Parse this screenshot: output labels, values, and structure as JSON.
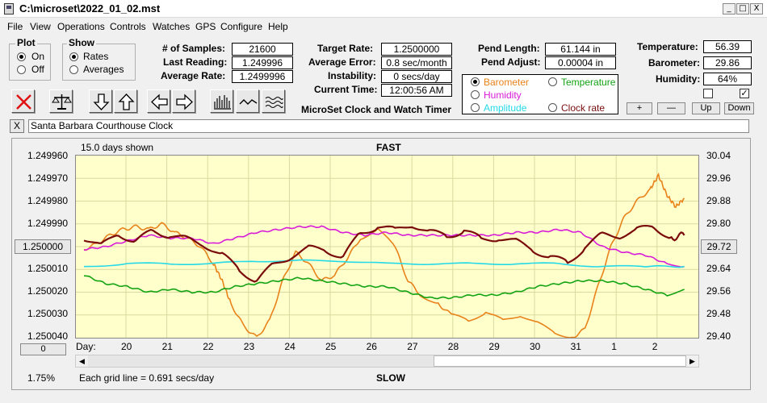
{
  "window": {
    "title": "C:\\microset\\2022_01_02.mst",
    "icon": "clock-app-icon",
    "controls": {
      "minimize": "_",
      "maximize": "□",
      "close": "X"
    }
  },
  "menu": [
    "File",
    "View",
    "Operations",
    "Controls",
    "Watches",
    "GPS",
    "Configure",
    "Help"
  ],
  "plot_group": {
    "title": "Plot",
    "on": "On",
    "off": "Off",
    "selected": "On"
  },
  "show_group": {
    "title": "Show",
    "rates": "Rates",
    "averages": "Averages",
    "selected": "Rates"
  },
  "stats": {
    "samples_label": "# of Samples:",
    "samples": "21600",
    "last_label": "Last Reading:",
    "last": "1.249996",
    "avg_label": "Average Rate:",
    "avg": "1.2499996"
  },
  "rates": {
    "target_label": "Target Rate:",
    "target": "1.2500000",
    "error_label": "Average Error:",
    "error": "0.8 sec/month",
    "instab_label": "Instability:",
    "instab": "0 secs/day",
    "time_label": "Current Time:",
    "time": "12:00:56 AM"
  },
  "app_name": "MicroSet Clock and Watch Timer",
  "pend": {
    "length_label": "Pend Length:",
    "length": "61.144 in",
    "adjust_label": "Pend Adjust:",
    "adjust": "0.00004 in"
  },
  "sensor_select": {
    "barometer": "Barometer",
    "temperature": "Temperature",
    "humidity": "Humidity",
    "amplitude": "Amplitude",
    "clock_rate": "Clock rate",
    "selected": "Barometer",
    "colors": {
      "barometer": "#e8821a",
      "temperature": "#13a313",
      "humidity": "#d81bd8",
      "amplitude": "#25d9e6",
      "clock_rate": "#7a0c0c"
    }
  },
  "env": {
    "temp_label": "Temperature:",
    "temp": "56.39",
    "baro_label": "Barometer:",
    "baro": "29.86",
    "hum_label": "Humidity:",
    "hum": "64%",
    "check1": false,
    "check2": true
  },
  "adjust_buttons": {
    "plus": "+",
    "minus": "—",
    "up": "Up",
    "down": "Down"
  },
  "toolbar_icons": [
    "clear-icon",
    "balance-scale-icon",
    "arrow-down-icon",
    "arrow-up-icon",
    "arrow-left-icon",
    "arrow-right-icon",
    "histogram-icon",
    "waveform-icon",
    "wavy-lines-icon"
  ],
  "clock_name": "Santa Barbara Courthouse Clock",
  "clear_name_button": "X",
  "chart_data": {
    "type": "line",
    "top_label": "FAST",
    "bottom_label": "SLOW",
    "days_shown": "15.0 days shown",
    "grid_note": "Each grid line = 0.691 secs/day",
    "left_axis": {
      "ticks": [
        "1.249960",
        "1.249970",
        "1.249980",
        "1.249990",
        "1.250000",
        "1.250010",
        "1.250020",
        "1.250030",
        "1.250040"
      ],
      "range": [
        1.24996,
        1.25004
      ],
      "inverted": true
    },
    "right_axis": {
      "ticks": [
        "30.04",
        "29.96",
        "29.88",
        "29.80",
        "29.72",
        "29.64",
        "29.56",
        "29.48",
        "29.40"
      ],
      "range": [
        29.4,
        30.04
      ]
    },
    "center_left_button": "1.250000",
    "center_right_button": "29.72",
    "bottom_left_button": "0",
    "zoom": "1.75%",
    "x_label": "Day:",
    "days": [
      "20",
      "21",
      "22",
      "23",
      "24",
      "25",
      "26",
      "27",
      "28",
      "29",
      "30",
      "31",
      "1",
      "2"
    ],
    "series": [
      {
        "name": "Barometer",
        "color": "#e8821a",
        "axis": "right",
        "points": [
          [
            0,
            29.71
          ],
          [
            0.3,
            29.73
          ],
          [
            0.6,
            29.76
          ],
          [
            0.9,
            29.78
          ],
          [
            1.2,
            29.79
          ],
          [
            1.5,
            29.78
          ],
          [
            1.8,
            29.8
          ],
          [
            2.1,
            29.77
          ],
          [
            2.4,
            29.75
          ],
          [
            2.7,
            29.72
          ],
          [
            3.0,
            29.66
          ],
          [
            3.2,
            29.6
          ],
          [
            3.4,
            29.52
          ],
          [
            3.7,
            29.44
          ],
          [
            4.0,
            29.4
          ],
          [
            4.3,
            29.46
          ],
          [
            4.6,
            29.6
          ],
          [
            4.9,
            29.7
          ],
          [
            5.2,
            29.66
          ],
          [
            5.5,
            29.6
          ],
          [
            5.8,
            29.62
          ],
          [
            6.1,
            29.68
          ],
          [
            6.4,
            29.75
          ],
          [
            6.8,
            29.78
          ],
          [
            7.2,
            29.72
          ],
          [
            7.5,
            29.6
          ],
          [
            7.8,
            29.55
          ],
          [
            8.2,
            29.52
          ],
          [
            8.5,
            29.48
          ],
          [
            8.9,
            29.46
          ],
          [
            9.3,
            29.49
          ],
          [
            9.7,
            29.46
          ],
          [
            10.1,
            29.48
          ],
          [
            10.5,
            29.45
          ],
          [
            10.9,
            29.42
          ],
          [
            11.3,
            29.4
          ],
          [
            11.6,
            29.43
          ],
          [
            11.9,
            29.58
          ],
          [
            12.2,
            29.72
          ],
          [
            12.5,
            29.82
          ],
          [
            12.8,
            29.88
          ],
          [
            13.1,
            29.92
          ],
          [
            13.3,
            29.97
          ],
          [
            13.5,
            29.9
          ],
          [
            13.7,
            29.86
          ],
          [
            13.9,
            29.89
          ]
        ]
      },
      {
        "name": "Temperature",
        "color": "#13a313",
        "axis": "right",
        "points": [
          [
            0,
            29.62
          ],
          [
            0.5,
            29.59
          ],
          [
            1.0,
            29.58
          ],
          [
            1.5,
            29.56
          ],
          [
            2.0,
            29.57
          ],
          [
            2.5,
            29.56
          ],
          [
            3.0,
            29.56
          ],
          [
            3.5,
            29.58
          ],
          [
            4.0,
            29.59
          ],
          [
            4.5,
            29.6
          ],
          [
            5.0,
            29.61
          ],
          [
            5.5,
            29.6
          ],
          [
            6.0,
            29.59
          ],
          [
            6.5,
            29.58
          ],
          [
            7.0,
            29.58
          ],
          [
            7.5,
            29.56
          ],
          [
            8.0,
            29.54
          ],
          [
            8.5,
            29.54
          ],
          [
            9.0,
            29.55
          ],
          [
            9.5,
            29.55
          ],
          [
            10.0,
            29.56
          ],
          [
            10.5,
            29.58
          ],
          [
            11.0,
            29.59
          ],
          [
            11.5,
            29.6
          ],
          [
            12.0,
            29.6
          ],
          [
            12.5,
            29.59
          ],
          [
            13.0,
            29.57
          ],
          [
            13.5,
            29.55
          ],
          [
            13.9,
            29.57
          ]
        ]
      },
      {
        "name": "Humidity",
        "color": "#d81bd8",
        "axis": "right",
        "points": [
          [
            0,
            29.71
          ],
          [
            0.5,
            29.72
          ],
          [
            1.0,
            29.74
          ],
          [
            1.5,
            29.76
          ],
          [
            2.0,
            29.75
          ],
          [
            2.5,
            29.75
          ],
          [
            3.0,
            29.73
          ],
          [
            3.5,
            29.75
          ],
          [
            4.0,
            29.77
          ],
          [
            4.5,
            29.78
          ],
          [
            5.0,
            29.79
          ],
          [
            5.5,
            29.79
          ],
          [
            6.0,
            29.77
          ],
          [
            6.5,
            29.76
          ],
          [
            7.0,
            29.77
          ],
          [
            7.5,
            29.76
          ],
          [
            8.0,
            29.76
          ],
          [
            8.5,
            29.76
          ],
          [
            9.0,
            29.76
          ],
          [
            9.5,
            29.76
          ],
          [
            10.0,
            29.77
          ],
          [
            10.5,
            29.77
          ],
          [
            11.0,
            29.78
          ],
          [
            11.5,
            29.77
          ],
          [
            12.0,
            29.72
          ],
          [
            12.5,
            29.7
          ],
          [
            13.0,
            29.69
          ],
          [
            13.5,
            29.66
          ],
          [
            13.9,
            29.65
          ]
        ]
      },
      {
        "name": "Amplitude",
        "color": "#25d9e6",
        "axis": "right",
        "points": [
          [
            0,
            29.65
          ],
          [
            1,
            29.66
          ],
          [
            2,
            29.66
          ],
          [
            3,
            29.66
          ],
          [
            4,
            29.67
          ],
          [
            5,
            29.67
          ],
          [
            6,
            29.67
          ],
          [
            7,
            29.66
          ],
          [
            8,
            29.66
          ],
          [
            9,
            29.66
          ],
          [
            10,
            29.66
          ],
          [
            11,
            29.66
          ],
          [
            12,
            29.65
          ],
          [
            13,
            29.65
          ],
          [
            13.9,
            29.65
          ]
        ]
      },
      {
        "name": "Clock rate",
        "color": "#7a0c0c",
        "axis": "left",
        "points": [
          [
            0,
            1.249996
          ],
          [
            0.4,
            1.25
          ],
          [
            0.8,
            1.249994
          ],
          [
            1.2,
            1.249998
          ],
          [
            1.6,
            1.249993
          ],
          [
            2.0,
            1.249995
          ],
          [
            2.4,
            1.249997
          ],
          [
            2.8,
            1.249999
          ],
          [
            3.2,
            1.250004
          ],
          [
            3.6,
            1.25001
          ],
          [
            4.0,
            1.250015
          ],
          [
            4.4,
            1.250008
          ],
          [
            4.8,
            1.250004
          ],
          [
            5.2,
            1.250001
          ],
          [
            5.6,
            1.250001
          ],
          [
            6.0,
            1.250005
          ],
          [
            6.4,
            1.249994
          ],
          [
            6.8,
            1.249991
          ],
          [
            7.2,
            1.249993
          ],
          [
            7.6,
            1.24999
          ],
          [
            8.0,
            1.249994
          ],
          [
            8.4,
            1.249995
          ],
          [
            8.8,
            1.249993
          ],
          [
            9.2,
            1.249997
          ],
          [
            9.6,
            1.249996
          ],
          [
            10.0,
            1.249998
          ],
          [
            10.4,
            1.250001
          ],
          [
            10.8,
            1.250005
          ],
          [
            11.2,
            1.250007
          ],
          [
            11.6,
            1.25
          ],
          [
            12.0,
            1.249995
          ],
          [
            12.4,
            1.249995
          ],
          [
            12.8,
            1.249993
          ],
          [
            13.2,
            1.249991
          ],
          [
            13.6,
            1.249996
          ],
          [
            13.9,
            1.249995
          ]
        ]
      }
    ]
  }
}
